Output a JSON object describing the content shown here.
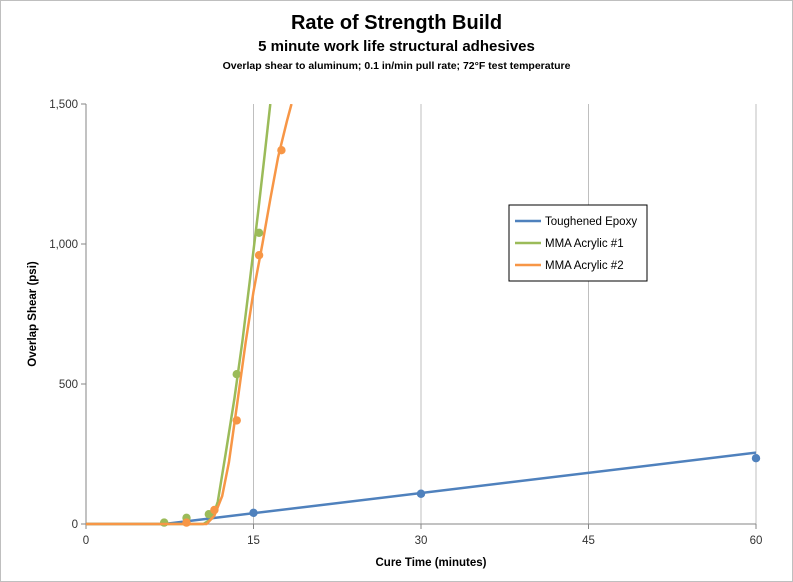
{
  "chart_data": {
    "type": "line",
    "title": "Rate of Strength Build",
    "subtitle": "5 minute work life structural adhesives",
    "subtitle2": "Overlap shear to aluminum; 0.1 in/min pull rate; 72°F test temperature",
    "xlabel": "Cure Time (minutes)",
    "ylabel": "Overlap Shear (psi)",
    "xlim": [
      0,
      60
    ],
    "ylim": [
      0,
      1500
    ],
    "xticks": [
      0,
      15,
      30,
      45,
      60
    ],
    "yticks": [
      0,
      500,
      1000,
      1500
    ],
    "xtick_labels": [
      "0",
      "15",
      "30",
      "45",
      "60"
    ],
    "ytick_labels": [
      "0",
      "500",
      "1,000",
      "1,500"
    ],
    "grid": "vertical",
    "legend_position": "right",
    "series": [
      {
        "name": "Toughened Epoxy",
        "color": "#4f81bd",
        "points": [
          [
            15,
            40
          ],
          [
            30,
            108
          ],
          [
            60,
            235
          ]
        ],
        "trend": [
          [
            0,
            0
          ],
          [
            7,
            0
          ],
          [
            60,
            255
          ]
        ]
      },
      {
        "name": "MMA Acrylic #1",
        "color": "#9bbb59",
        "points": [
          [
            7,
            5
          ],
          [
            9,
            22
          ],
          [
            11,
            35
          ],
          [
            13.5,
            535
          ],
          [
            15.5,
            1040
          ]
        ],
        "trend": [
          [
            0,
            0
          ],
          [
            10.5,
            0
          ],
          [
            11.3,
            20
          ],
          [
            11.8,
            80
          ],
          [
            12.5,
            250
          ],
          [
            13.3,
            450
          ],
          [
            14,
            650
          ],
          [
            14.7,
            880
          ],
          [
            15.4,
            1110
          ],
          [
            16,
            1320
          ],
          [
            16.5,
            1500
          ]
        ]
      },
      {
        "name": "MMA Acrylic #2",
        "color": "#f79646",
        "points": [
          [
            9,
            5
          ],
          [
            11.5,
            50
          ],
          [
            13.5,
            370
          ],
          [
            15.5,
            960
          ],
          [
            17.5,
            1335
          ]
        ],
        "trend": [
          [
            0,
            0
          ],
          [
            10.8,
            0
          ],
          [
            11.5,
            30
          ],
          [
            12.2,
            100
          ],
          [
            12.8,
            220
          ],
          [
            13.5,
            420
          ],
          [
            14.3,
            650
          ],
          [
            15,
            830
          ],
          [
            15.8,
            1000
          ],
          [
            16.5,
            1160
          ],
          [
            17.2,
            1310
          ],
          [
            18,
            1440
          ],
          [
            18.4,
            1500
          ]
        ]
      }
    ]
  }
}
